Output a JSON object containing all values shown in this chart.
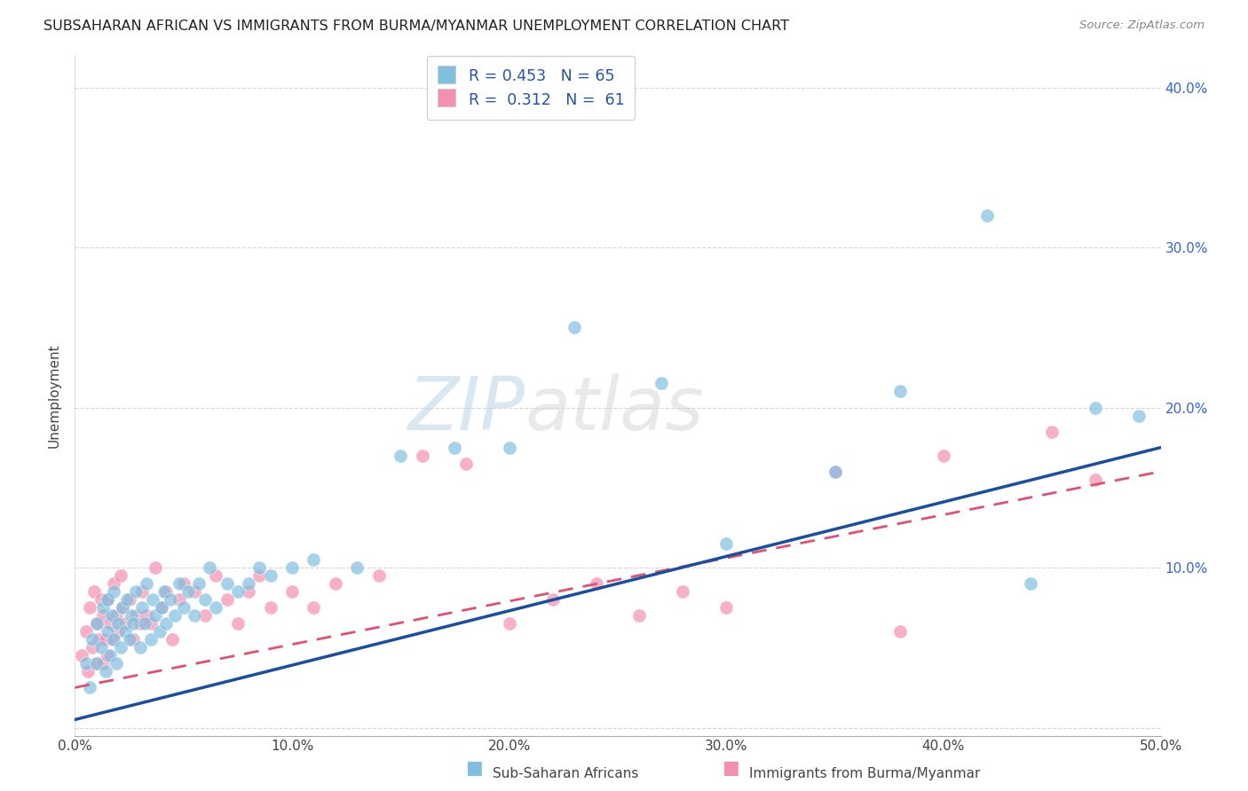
{
  "title": "SUBSAHARAN AFRICAN VS IMMIGRANTS FROM BURMA/MYANMAR UNEMPLOYMENT CORRELATION CHART",
  "source": "Source: ZipAtlas.com",
  "ylabel": "Unemployment",
  "xlim": [
    0.0,
    0.5
  ],
  "ylim": [
    -0.005,
    0.42
  ],
  "color_blue": "#7fbfdf",
  "color_pink": "#f48fb1",
  "trend_blue": "#1a4fa0",
  "trend_pink": "#e05070",
  "blue_trend_x0": 0.0,
  "blue_trend_y0": 0.005,
  "blue_trend_x1": 0.5,
  "blue_trend_y1": 0.175,
  "pink_trend_x0": 0.0,
  "pink_trend_y0": 0.025,
  "pink_trend_x1": 0.5,
  "pink_trend_y1": 0.16,
  "blue_scatter_x": [
    0.005,
    0.007,
    0.008,
    0.01,
    0.01,
    0.012,
    0.013,
    0.014,
    0.015,
    0.015,
    0.016,
    0.017,
    0.018,
    0.018,
    0.019,
    0.02,
    0.021,
    0.022,
    0.023,
    0.024,
    0.025,
    0.026,
    0.027,
    0.028,
    0.03,
    0.031,
    0.032,
    0.033,
    0.035,
    0.036,
    0.037,
    0.039,
    0.04,
    0.041,
    0.042,
    0.044,
    0.046,
    0.048,
    0.05,
    0.052,
    0.055,
    0.057,
    0.06,
    0.062,
    0.065,
    0.07,
    0.075,
    0.08,
    0.085,
    0.09,
    0.1,
    0.11,
    0.13,
    0.15,
    0.175,
    0.2,
    0.23,
    0.27,
    0.3,
    0.35,
    0.38,
    0.42,
    0.44,
    0.47,
    0.49
  ],
  "blue_scatter_y": [
    0.04,
    0.025,
    0.055,
    0.04,
    0.065,
    0.05,
    0.075,
    0.035,
    0.06,
    0.08,
    0.045,
    0.07,
    0.055,
    0.085,
    0.04,
    0.065,
    0.05,
    0.075,
    0.06,
    0.08,
    0.055,
    0.07,
    0.065,
    0.085,
    0.05,
    0.075,
    0.065,
    0.09,
    0.055,
    0.08,
    0.07,
    0.06,
    0.075,
    0.085,
    0.065,
    0.08,
    0.07,
    0.09,
    0.075,
    0.085,
    0.07,
    0.09,
    0.08,
    0.1,
    0.075,
    0.09,
    0.085,
    0.09,
    0.1,
    0.095,
    0.1,
    0.105,
    0.1,
    0.17,
    0.175,
    0.175,
    0.25,
    0.215,
    0.115,
    0.16,
    0.21,
    0.32,
    0.09,
    0.2,
    0.195
  ],
  "pink_scatter_x": [
    0.003,
    0.005,
    0.006,
    0.007,
    0.008,
    0.009,
    0.01,
    0.01,
    0.011,
    0.012,
    0.013,
    0.013,
    0.014,
    0.015,
    0.015,
    0.016,
    0.017,
    0.018,
    0.019,
    0.02,
    0.021,
    0.022,
    0.023,
    0.025,
    0.027,
    0.028,
    0.03,
    0.031,
    0.033,
    0.035,
    0.037,
    0.04,
    0.042,
    0.045,
    0.048,
    0.05,
    0.055,
    0.06,
    0.065,
    0.07,
    0.075,
    0.08,
    0.085,
    0.09,
    0.1,
    0.11,
    0.12,
    0.14,
    0.16,
    0.18,
    0.2,
    0.22,
    0.24,
    0.26,
    0.28,
    0.3,
    0.35,
    0.38,
    0.4,
    0.45,
    0.47
  ],
  "pink_scatter_y": [
    0.045,
    0.06,
    0.035,
    0.075,
    0.05,
    0.085,
    0.04,
    0.065,
    0.055,
    0.08,
    0.04,
    0.07,
    0.055,
    0.045,
    0.08,
    0.065,
    0.055,
    0.09,
    0.07,
    0.06,
    0.095,
    0.075,
    0.065,
    0.08,
    0.055,
    0.07,
    0.065,
    0.085,
    0.07,
    0.065,
    0.1,
    0.075,
    0.085,
    0.055,
    0.08,
    0.09,
    0.085,
    0.07,
    0.095,
    0.08,
    0.065,
    0.085,
    0.095,
    0.075,
    0.085,
    0.075,
    0.09,
    0.095,
    0.17,
    0.165,
    0.065,
    0.08,
    0.09,
    0.07,
    0.085,
    0.075,
    0.16,
    0.06,
    0.17,
    0.185,
    0.155
  ]
}
